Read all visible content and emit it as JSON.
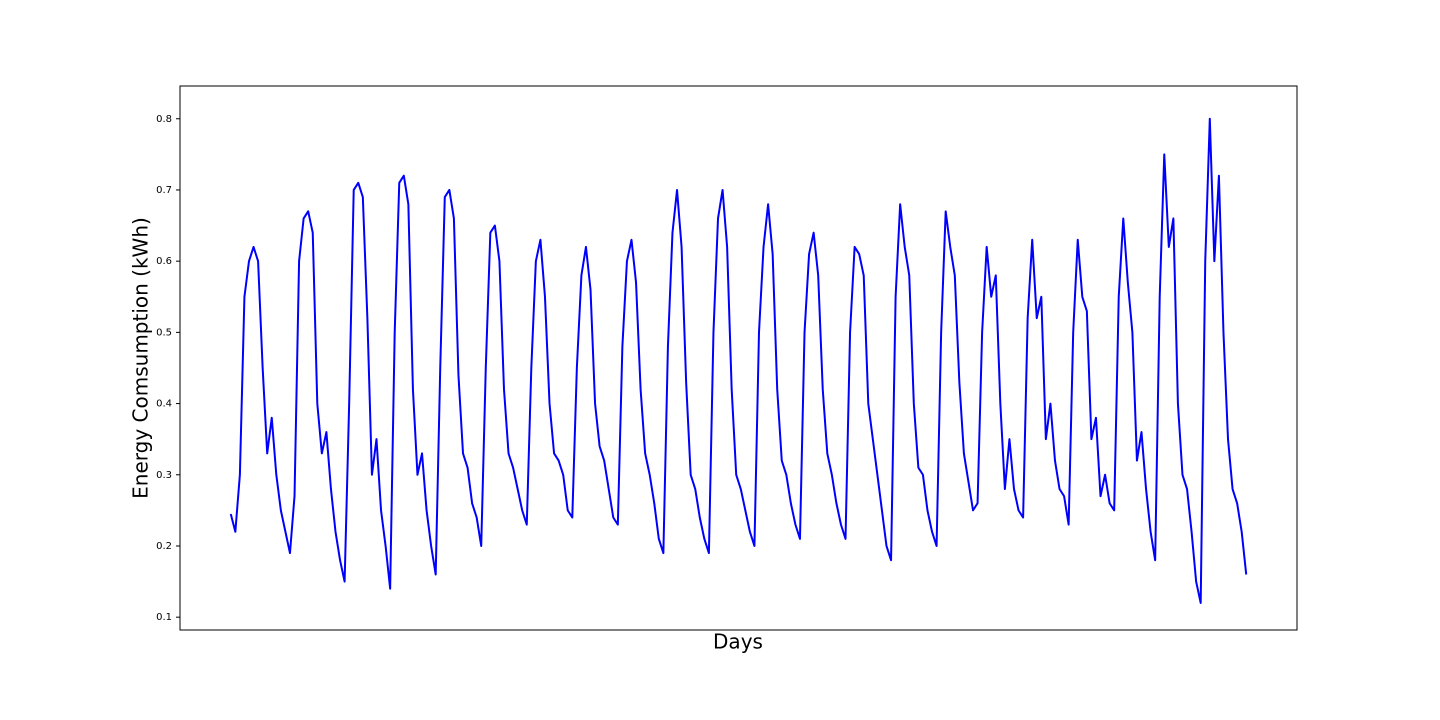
{
  "chart_data": {
    "type": "line",
    "x_label": "Days",
    "y_label": "Energy Comsumption (kWh)",
    "series": [
      {
        "color": "#0000ff",
        "values": [
          0.245,
          0.22,
          0.3,
          0.55,
          0.6,
          0.62,
          0.6,
          0.45,
          0.33,
          0.38,
          0.3,
          0.25,
          0.22,
          0.19,
          0.27,
          0.6,
          0.66,
          0.67,
          0.64,
          0.4,
          0.33,
          0.36,
          0.28,
          0.22,
          0.18,
          0.15,
          0.4,
          0.7,
          0.71,
          0.69,
          0.52,
          0.3,
          0.35,
          0.25,
          0.2,
          0.14,
          0.5,
          0.71,
          0.72,
          0.68,
          0.42,
          0.3,
          0.33,
          0.25,
          0.2,
          0.16,
          0.45,
          0.69,
          0.7,
          0.66,
          0.44,
          0.33,
          0.31,
          0.26,
          0.24,
          0.2,
          0.45,
          0.64,
          0.65,
          0.6,
          0.42,
          0.33,
          0.31,
          0.28,
          0.25,
          0.23,
          0.45,
          0.6,
          0.63,
          0.55,
          0.4,
          0.33,
          0.32,
          0.3,
          0.25,
          0.24,
          0.45,
          0.58,
          0.62,
          0.56,
          0.4,
          0.34,
          0.32,
          0.28,
          0.24,
          0.23,
          0.48,
          0.6,
          0.63,
          0.57,
          0.42,
          0.33,
          0.3,
          0.26,
          0.21,
          0.19,
          0.48,
          0.64,
          0.7,
          0.62,
          0.43,
          0.3,
          0.28,
          0.24,
          0.21,
          0.19,
          0.5,
          0.66,
          0.7,
          0.62,
          0.42,
          0.3,
          0.28,
          0.25,
          0.22,
          0.2,
          0.5,
          0.62,
          0.68,
          0.61,
          0.42,
          0.32,
          0.3,
          0.26,
          0.23,
          0.21,
          0.5,
          0.61,
          0.64,
          0.58,
          0.42,
          0.33,
          0.3,
          0.26,
          0.23,
          0.21,
          0.5,
          0.62,
          0.61,
          0.58,
          0.4,
          0.35,
          0.3,
          0.25,
          0.2,
          0.18,
          0.55,
          0.68,
          0.62,
          0.58,
          0.4,
          0.31,
          0.3,
          0.25,
          0.22,
          0.2,
          0.5,
          0.67,
          0.62,
          0.58,
          0.43,
          0.33,
          0.29,
          0.25,
          0.26,
          0.5,
          0.62,
          0.55,
          0.58,
          0.4,
          0.28,
          0.35,
          0.28,
          0.25,
          0.24,
          0.52,
          0.63,
          0.52,
          0.55,
          0.35,
          0.4,
          0.32,
          0.28,
          0.27,
          0.23,
          0.5,
          0.63,
          0.55,
          0.53,
          0.35,
          0.38,
          0.27,
          0.3,
          0.26,
          0.25,
          0.55,
          0.66,
          0.57,
          0.5,
          0.32,
          0.36,
          0.28,
          0.22,
          0.18,
          0.55,
          0.75,
          0.62,
          0.66,
          0.4,
          0.3,
          0.28,
          0.22,
          0.15,
          0.12,
          0.6,
          0.8,
          0.6,
          0.72,
          0.5,
          0.35,
          0.28,
          0.26,
          0.22,
          0.16
        ]
      }
    ],
    "xlim": [
      -11.15,
      234.15
    ],
    "ylim": [
      0.082,
      0.846
    ],
    "yticks": [
      0.1,
      0.2,
      0.3,
      0.4,
      0.5,
      0.6,
      0.7,
      0.8
    ]
  }
}
